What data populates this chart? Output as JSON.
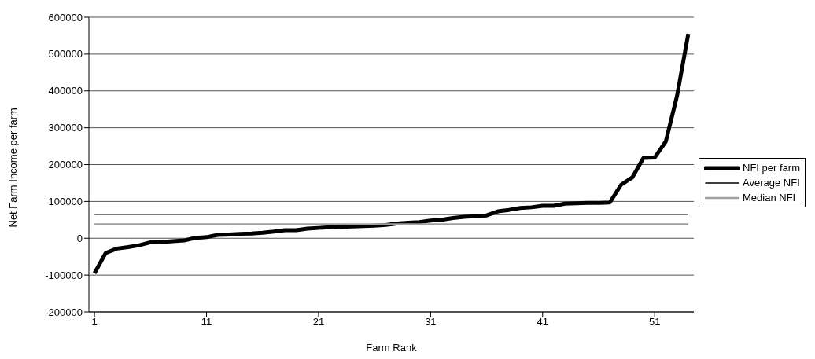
{
  "chart_data": {
    "type": "line",
    "xlabel": "Farm Rank",
    "ylabel": "Net Farm Income per farm",
    "x": [
      1,
      2,
      3,
      4,
      5,
      6,
      7,
      8,
      9,
      10,
      11,
      12,
      13,
      14,
      15,
      16,
      17,
      18,
      19,
      20,
      21,
      22,
      23,
      24,
      25,
      26,
      27,
      28,
      29,
      30,
      31,
      32,
      33,
      34,
      35,
      36,
      37,
      38,
      39,
      40,
      41,
      42,
      43,
      44,
      45,
      46,
      47,
      48,
      49,
      50,
      51,
      52,
      53,
      54
    ],
    "series": [
      {
        "name": "NFI per farm",
        "color": "#000000",
        "values": [
          -95000,
          -40000,
          -28000,
          -24000,
          -19000,
          -11000,
          -10000,
          -8000,
          -6000,
          1000,
          3000,
          9000,
          10000,
          12000,
          13000,
          15000,
          18000,
          22000,
          22000,
          26000,
          28000,
          30000,
          31000,
          32000,
          33000,
          34000,
          36000,
          40000,
          42000,
          44000,
          48000,
          50000,
          55000,
          58000,
          60000,
          62000,
          73000,
          77000,
          82000,
          84000,
          88000,
          88000,
          94000,
          95000,
          96000,
          96000,
          97000,
          145000,
          165000,
          218000,
          219000,
          263000,
          387000,
          555000
        ]
      },
      {
        "name": "Average NFI",
        "color": "#000000",
        "values": [
          65000,
          65000,
          65000,
          65000,
          65000,
          65000,
          65000,
          65000,
          65000,
          65000,
          65000,
          65000,
          65000,
          65000,
          65000,
          65000,
          65000,
          65000,
          65000,
          65000,
          65000,
          65000,
          65000,
          65000,
          65000,
          65000,
          65000,
          65000,
          65000,
          65000,
          65000,
          65000,
          65000,
          65000,
          65000,
          65000,
          65000,
          65000,
          65000,
          65000,
          65000,
          65000,
          65000,
          65000,
          65000,
          65000,
          65000,
          65000,
          65000,
          65000,
          65000,
          65000,
          65000,
          65000
        ]
      },
      {
        "name": "Median NFI",
        "color": "#a0a0a0",
        "values": [
          38000,
          38000,
          38000,
          38000,
          38000,
          38000,
          38000,
          38000,
          38000,
          38000,
          38000,
          38000,
          38000,
          38000,
          38000,
          38000,
          38000,
          38000,
          38000,
          38000,
          38000,
          38000,
          38000,
          38000,
          38000,
          38000,
          38000,
          38000,
          38000,
          38000,
          38000,
          38000,
          38000,
          38000,
          38000,
          38000,
          38000,
          38000,
          38000,
          38000,
          38000,
          38000,
          38000,
          38000,
          38000,
          38000,
          38000,
          38000,
          38000,
          38000,
          38000,
          38000,
          38000,
          38000
        ]
      }
    ],
    "xlim": [
      0.5,
      54.5
    ],
    "xticks": [
      1,
      11,
      21,
      31,
      41,
      51
    ],
    "ylim": [
      -200000,
      600000
    ],
    "yticks": [
      -200000,
      -100000,
      0,
      100000,
      200000,
      300000,
      400000,
      500000,
      600000
    ],
    "grid": "y",
    "legend": "right",
    "marker": "none",
    "line_style": "solid"
  }
}
